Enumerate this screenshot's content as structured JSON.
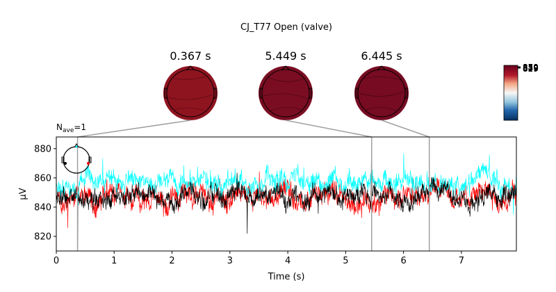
{
  "figure": {
    "title": "CJ_T77 Open (valve)",
    "nave_label": "N",
    "nave_sub": "ave",
    "nave_value": "=1"
  },
  "topomaps": [
    {
      "time_label": "0.367 s",
      "time": 0.367,
      "color": "#8e1420"
    },
    {
      "time_label": "5.449 s",
      "time": 5.449,
      "color": "#7a0d22"
    },
    {
      "time_label": "6.445 s",
      "time": 6.445,
      "color": "#760b22"
    }
  ],
  "colorbar": {
    "labels": [
      "870",
      "859",
      "849",
      "839",
      "829"
    ],
    "colors": {
      "top": "#67001f",
      "mid": "#f7f7f7",
      "bottom": "#053061"
    }
  },
  "chart_data": {
    "type": "line",
    "title": "CJ_T77 Open (valve)",
    "xlabel": "Time (s)",
    "ylabel": "µV",
    "xlim": [
      0,
      7.95
    ],
    "ylim": [
      810,
      888
    ],
    "xticks": [
      0,
      1,
      2,
      3,
      4,
      5,
      6,
      7
    ],
    "yticks": [
      820,
      840,
      860,
      880
    ],
    "grid": false,
    "legend": "sensor-layout-inset-top-left",
    "marker_times": [
      0.367,
      5.449,
      6.445
    ],
    "series": [
      {
        "color": "#ff0000",
        "baseline": 847,
        "amplitude": 7,
        "seed": 3,
        "spikes": [
          [
            0.367,
            835
          ],
          [
            0.2,
            826
          ],
          [
            5.449,
            872
          ],
          [
            6.445,
            860
          ]
        ]
      },
      {
        "color": "#00ffff",
        "baseline": 857,
        "amplitude": 6,
        "seed": 11,
        "spikes": [
          [
            0.8,
            873
          ],
          [
            5.449,
            868
          ],
          [
            7.9,
            835
          ]
        ]
      },
      {
        "color": "#000000",
        "baseline": 847,
        "amplitude": 6,
        "seed": 27,
        "spikes": [
          [
            0.367,
            812
          ],
          [
            3.3,
            822
          ],
          [
            5.449,
            884
          ],
          [
            6.445,
            870
          ]
        ]
      }
    ]
  }
}
